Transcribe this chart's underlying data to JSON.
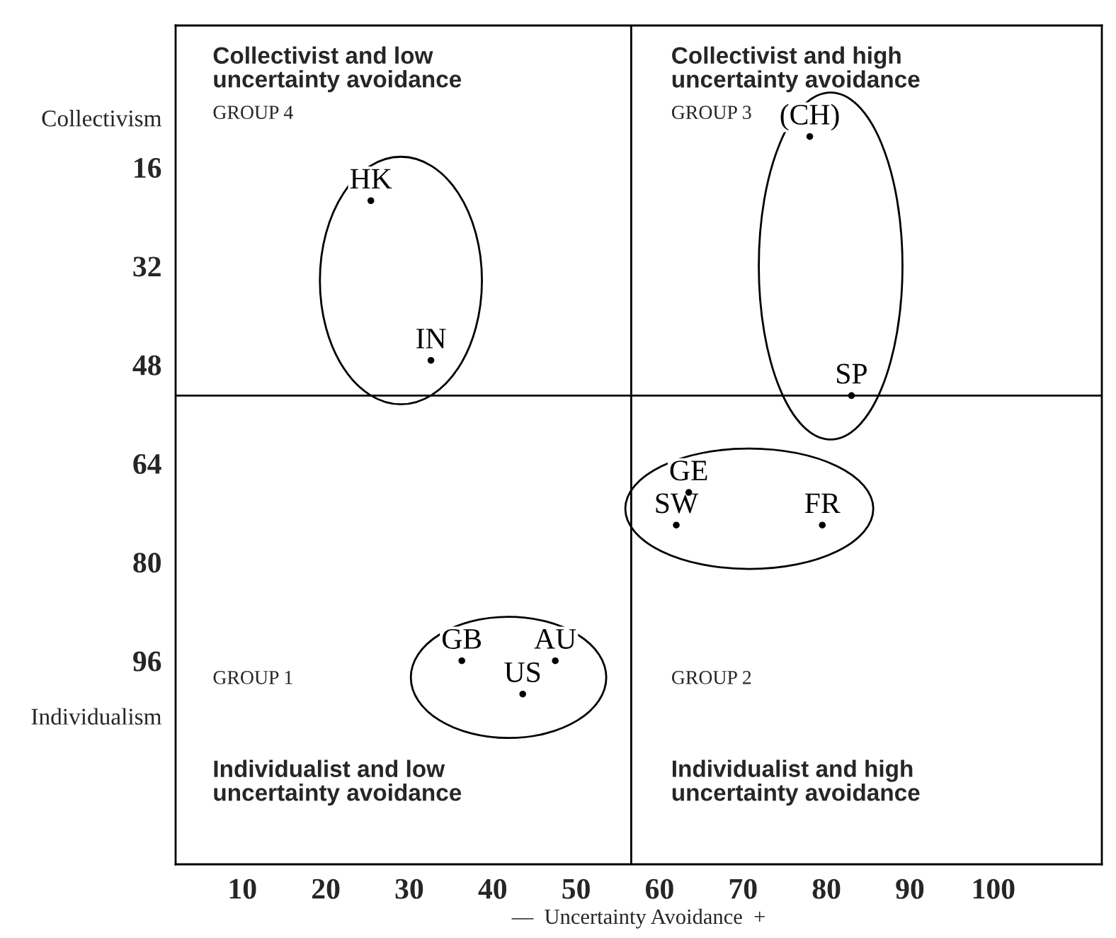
{
  "chart_data": {
    "type": "scatter",
    "xlabel": "—  Uncertainty Avoidance  +",
    "xlim": [
      2,
      113
    ],
    "xticks": [
      10,
      20,
      30,
      40,
      50,
      60,
      70,
      80,
      90,
      100
    ],
    "ylim": [
      129,
      -7
    ],
    "yticks": [
      {
        "value": 8,
        "label": "Collectivism"
      },
      16,
      32,
      48,
      64,
      80,
      96,
      {
        "value": 105,
        "label": "Individualism"
      }
    ],
    "marker": "circle",
    "grid": false,
    "legend": false,
    "series": [
      {
        "color": "#000000",
        "x": [
          25.4,
          32.6
        ],
        "values": [
          21.4,
          47.3
        ],
        "value_labels": [
          "HK",
          "IN"
        ]
      },
      {
        "color": "#000000",
        "x": [
          78,
          83
        ],
        "values": [
          11,
          53
        ],
        "value_labels": [
          "(CH)",
          "SP"
        ]
      },
      {
        "color": "#000000",
        "x": [
          63.5,
          62,
          79.5
        ],
        "values": [
          68.7,
          74,
          74
        ],
        "value_labels": [
          "GE",
          "SW",
          "FR"
        ]
      },
      {
        "color": "#000000",
        "x": [
          36.3,
          47.5,
          43.6
        ],
        "values": [
          96,
          96,
          101.4
        ],
        "value_labels": [
          "GB",
          "AU",
          "US"
        ]
      }
    ],
    "ref_lines": [
      {
        "axis": "x",
        "value": 56.6,
        "color": "#000000"
      },
      {
        "axis": "y",
        "value": 53,
        "color": "#000000"
      }
    ],
    "annotations": [
      "Collectivist and low\nuncertainty avoidance",
      "GROUP 4",
      "Collectivist and high\nuncertainty avoidance",
      "GROUP 3",
      "GROUP 1",
      "Individualist and low\nuncertainty avoidance",
      "GROUP 2",
      "Individualist and high\nuncertainty avoidance"
    ]
  }
}
